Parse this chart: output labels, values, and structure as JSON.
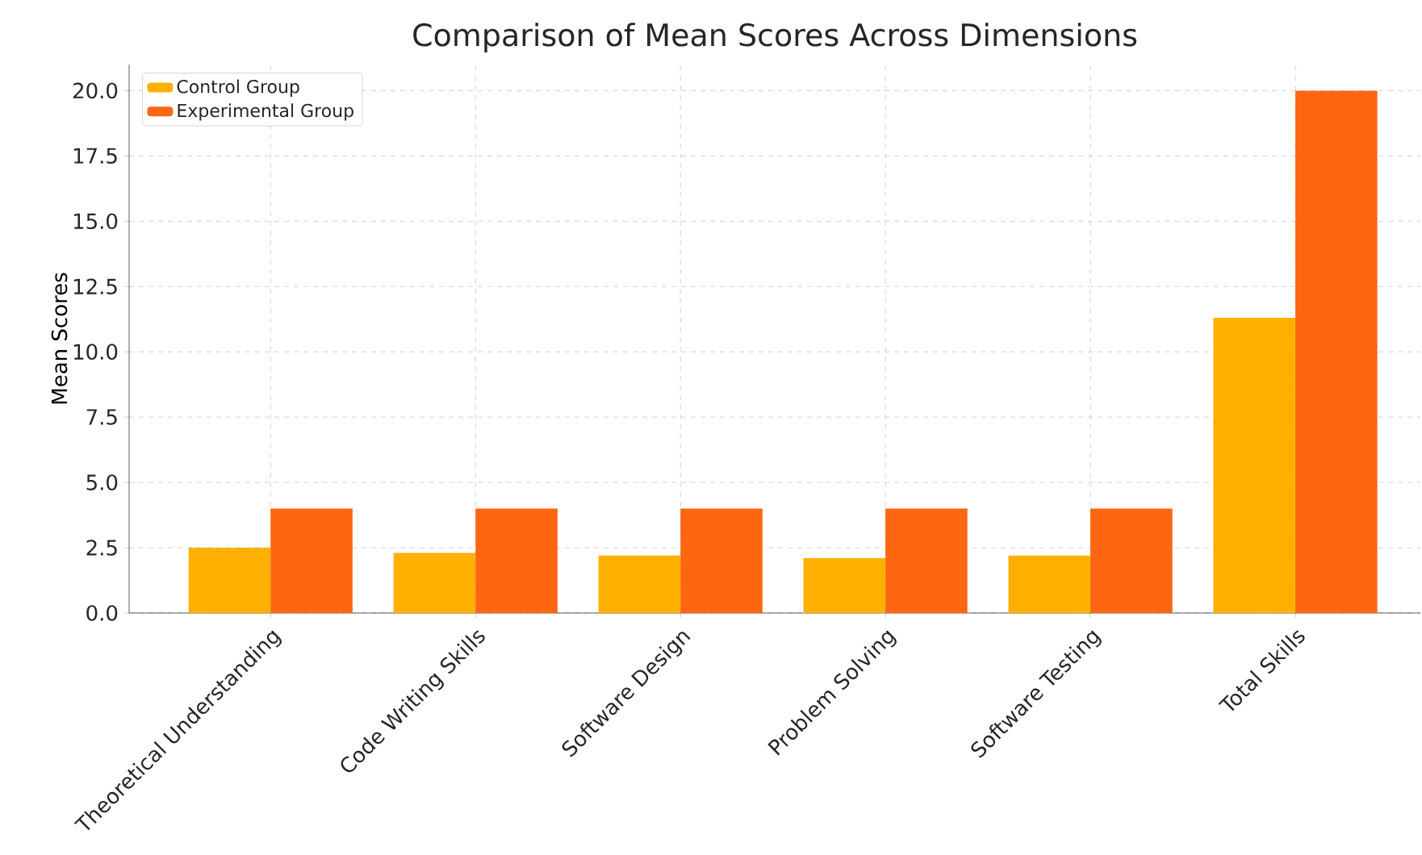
{
  "chart_data": {
    "type": "bar",
    "title": "Comparison of Mean Scores Across Dimensions",
    "ylabel": "Mean Scores",
    "categories": [
      "Theoretical Understanding",
      "Code Writing Skills",
      "Software Design",
      "Problem Solving",
      "Software Testing",
      "Total Skills"
    ],
    "series": [
      {
        "name": "Control Group",
        "color": "#ffb000",
        "values": [
          2.5,
          2.3,
          2.2,
          2.1,
          2.2,
          11.3
        ]
      },
      {
        "name": "Experimental Group",
        "color": "#ff6611",
        "values": [
          4.0,
          4.0,
          4.0,
          4.0,
          4.0,
          20.0
        ]
      }
    ],
    "ylim": [
      0,
      21
    ],
    "yticks": [
      {
        "value": 0,
        "label": "0.0"
      },
      {
        "value": 2.5,
        "label": "2.5"
      },
      {
        "value": 5,
        "label": "5.0"
      },
      {
        "value": 7.5,
        "label": "7.5"
      },
      {
        "value": 10,
        "label": "10.0"
      },
      {
        "value": 12.5,
        "label": "12.5"
      },
      {
        "value": 15,
        "label": "15.0"
      },
      {
        "value": 17.5,
        "label": "17.5"
      },
      {
        "value": 20,
        "label": "20.0"
      }
    ],
    "grid": true,
    "legend": "top left"
  }
}
